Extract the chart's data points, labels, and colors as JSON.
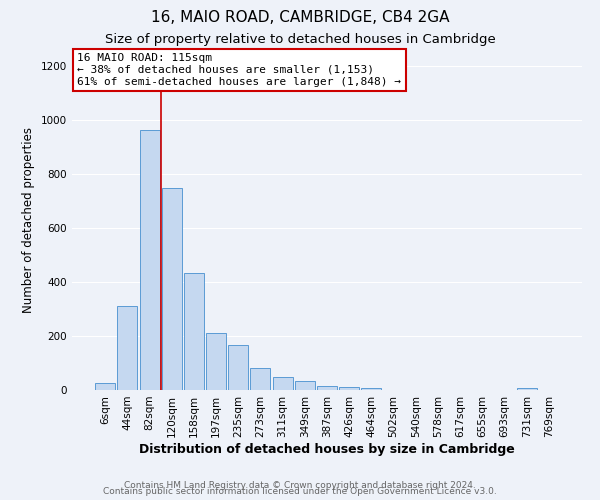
{
  "title": "16, MAIO ROAD, CAMBRIDGE, CB4 2GA",
  "subtitle": "Size of property relative to detached houses in Cambridge",
  "xlabel": "Distribution of detached houses by size in Cambridge",
  "ylabel": "Number of detached properties",
  "bin_labels": [
    "6sqm",
    "44sqm",
    "82sqm",
    "120sqm",
    "158sqm",
    "197sqm",
    "235sqm",
    "273sqm",
    "311sqm",
    "349sqm",
    "387sqm",
    "426sqm",
    "464sqm",
    "502sqm",
    "540sqm",
    "578sqm",
    "617sqm",
    "655sqm",
    "693sqm",
    "731sqm",
    "769sqm"
  ],
  "bar_heights": [
    25,
    310,
    965,
    750,
    435,
    210,
    165,
    80,
    48,
    32,
    15,
    10,
    7,
    0,
    0,
    0,
    0,
    0,
    0,
    8,
    0
  ],
  "bar_color": "#c5d8f0",
  "bar_edge_color": "#5b9bd5",
  "vline_x_index": 2,
  "vline_color": "#cc0000",
  "annotation_text": "16 MAIO ROAD: 115sqm\n← 38% of detached houses are smaller (1,153)\n61% of semi-detached houses are larger (1,848) →",
  "annotation_box_color": "#ffffff",
  "annotation_box_edge_color": "#cc0000",
  "footer_line1": "Contains HM Land Registry data © Crown copyright and database right 2024.",
  "footer_line2": "Contains public sector information licensed under the Open Government Licence v3.0.",
  "ylim": [
    0,
    1260
  ],
  "yticks": [
    0,
    200,
    400,
    600,
    800,
    1000,
    1200
  ],
  "background_color": "#eef2f9",
  "grid_color": "#ffffff",
  "title_fontsize": 11,
  "subtitle_fontsize": 9.5,
  "xlabel_fontsize": 9,
  "ylabel_fontsize": 8.5,
  "tick_fontsize": 7.5,
  "annotation_fontsize": 8,
  "footer_fontsize": 6.5
}
